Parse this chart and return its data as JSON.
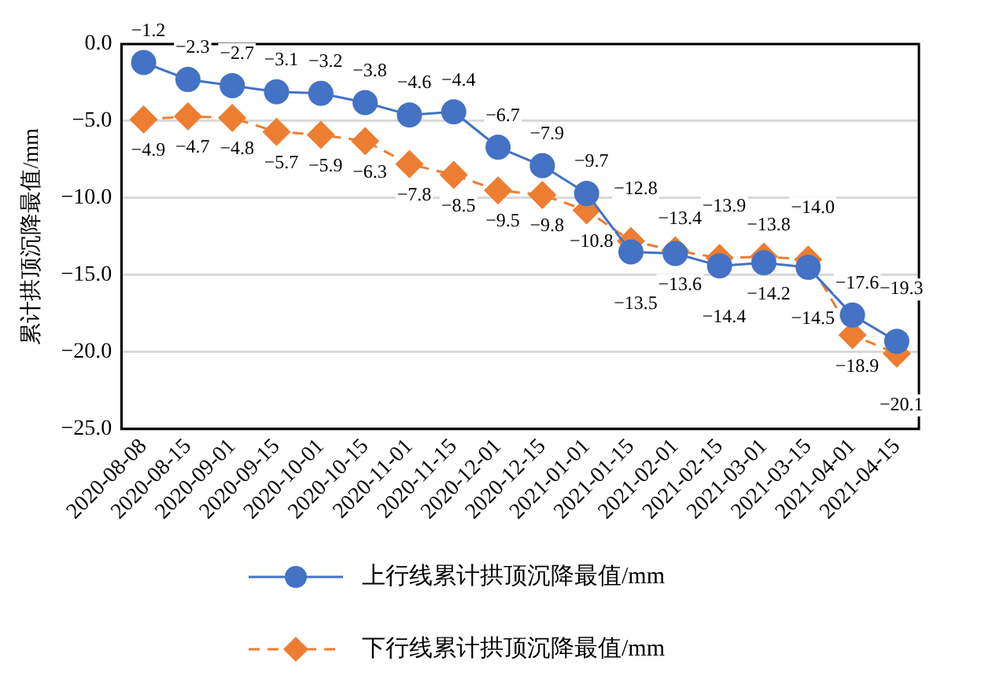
{
  "chart_data": {
    "type": "line",
    "ylabel": "累计拱顶沉降最值/mm",
    "categories": [
      "2020-08-08",
      "2020-08-15",
      "2020-09-01",
      "2020-09-15",
      "2020-10-01",
      "2020-10-15",
      "2020-11-01",
      "2020-11-15",
      "2020-12-01",
      "2020-12-15",
      "2021-01-01",
      "2021-01-15",
      "2021-02-01",
      "2021-02-15",
      "2021-03-01",
      "2021-03-15",
      "2021-04-01",
      "2021-04-15"
    ],
    "series": [
      {
        "name": "上行线累计拱顶沉降最值/mm",
        "color": "#4472c4",
        "marker": "circle",
        "line_style": "solid",
        "values": [
          -1.2,
          -2.3,
          -2.7,
          -3.1,
          -3.2,
          -3.8,
          -4.6,
          -4.4,
          -6.7,
          -7.9,
          -9.7,
          -13.5,
          -13.6,
          -14.4,
          -14.2,
          -14.5,
          -17.6,
          -19.3
        ],
        "value_labels": [
          "−1.2",
          "−2.3",
          "−2.7",
          "−3.1",
          "−3.2",
          "−3.8",
          "−4.6",
          "−4.4",
          "−6.7",
          "−7.9",
          "−9.7",
          "−13.5",
          "−13.6",
          "−14.4",
          "−14.2",
          "−14.5",
          "−17.6",
          "−19.3"
        ]
      },
      {
        "name": "下行线累计拱顶沉降最值/mm",
        "color": "#ed7d31",
        "marker": "diamond",
        "line_style": "dashed",
        "values": [
          -4.9,
          -4.7,
          -4.8,
          -5.7,
          -5.9,
          -6.3,
          -7.8,
          -8.5,
          -9.5,
          -9.8,
          -10.8,
          -12.8,
          -13.4,
          -13.9,
          -13.8,
          -14.0,
          -18.9,
          -20.1
        ],
        "value_labels": [
          "−4.9",
          "−4.7",
          "−4.8",
          "−5.7",
          "−5.9",
          "−6.3",
          "−7.8",
          "−8.5",
          "−9.5",
          "−9.8",
          "−10.8",
          "−12.8",
          "−13.4",
          "−13.9",
          "−13.8",
          "−14.0",
          "−18.9",
          "−20.1"
        ]
      }
    ],
    "ylim": [
      -25,
      0
    ],
    "yticks": [
      {
        "value": -25,
        "label": "−25.0"
      },
      {
        "value": -20,
        "label": "−20.0"
      },
      {
        "value": -15,
        "label": "−15.0"
      },
      {
        "value": -10,
        "label": "−10.0"
      },
      {
        "value": -5,
        "label": "−5.0"
      },
      {
        "value": 0,
        "label": "0.0"
      }
    ],
    "grid": "y",
    "legend": "bottom"
  }
}
